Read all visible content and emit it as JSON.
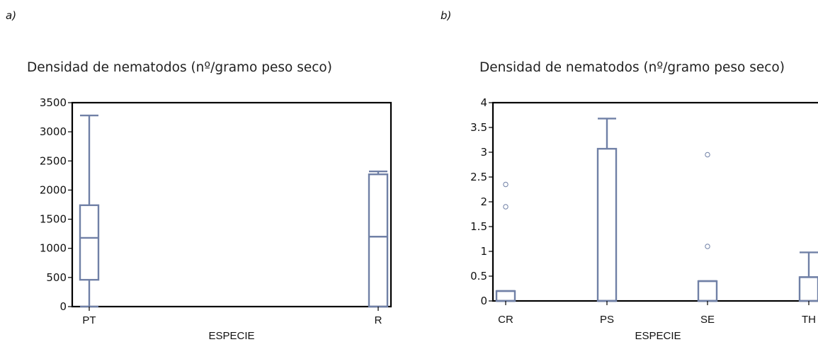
{
  "panels": {
    "a": "a)",
    "b": "b)"
  },
  "colors": {
    "box": "#7080a6",
    "frame": "#000000",
    "text": "#111111"
  },
  "chart_data": [
    {
      "type": "box",
      "title": "Densidad de nematodos (nº/gramo peso seco)",
      "xlabel": "ESPECIE",
      "ylabel": "",
      "ylim": [
        0,
        3500
      ],
      "yticks": [
        0,
        500,
        1000,
        1500,
        2000,
        2500,
        3000,
        3500
      ],
      "grid": false,
      "categories": [
        "PT",
        "R"
      ],
      "boxes": [
        {
          "category": "PT",
          "min": 0,
          "q1": 460,
          "median": 1180,
          "q3": 1740,
          "max": 3280,
          "outliers": []
        },
        {
          "category": "R",
          "min": 0,
          "q1": 0,
          "median": 1200,
          "q3": 2270,
          "max": 2320,
          "outliers": []
        }
      ]
    },
    {
      "type": "box",
      "title": "Densidad de nematodos (nº/gramo peso seco)",
      "xlabel": "ESPECIE",
      "ylabel": "",
      "ylim": [
        0,
        4
      ],
      "yticks": [
        0,
        0.5,
        1,
        1.5,
        2,
        2.5,
        3,
        3.5,
        4
      ],
      "grid": false,
      "categories": [
        "CR",
        "PS",
        "SE",
        "TH"
      ],
      "boxes": [
        {
          "category": "CR",
          "min": 0,
          "q1": 0,
          "median": 0,
          "q3": 0.2,
          "max": 0.2,
          "outliers": [
            1.9,
            2.35
          ]
        },
        {
          "category": "PS",
          "min": 0,
          "q1": 0,
          "median": 0,
          "q3": 3.07,
          "max": 3.68,
          "outliers": []
        },
        {
          "category": "SE",
          "min": 0,
          "q1": 0,
          "median": 0,
          "q3": 0.4,
          "max": 0.4,
          "outliers": [
            1.1,
            2.95
          ]
        },
        {
          "category": "TH",
          "min": 0,
          "q1": 0,
          "median": 0.48,
          "q3": 0.48,
          "max": 0.98,
          "outliers": []
        }
      ]
    }
  ]
}
